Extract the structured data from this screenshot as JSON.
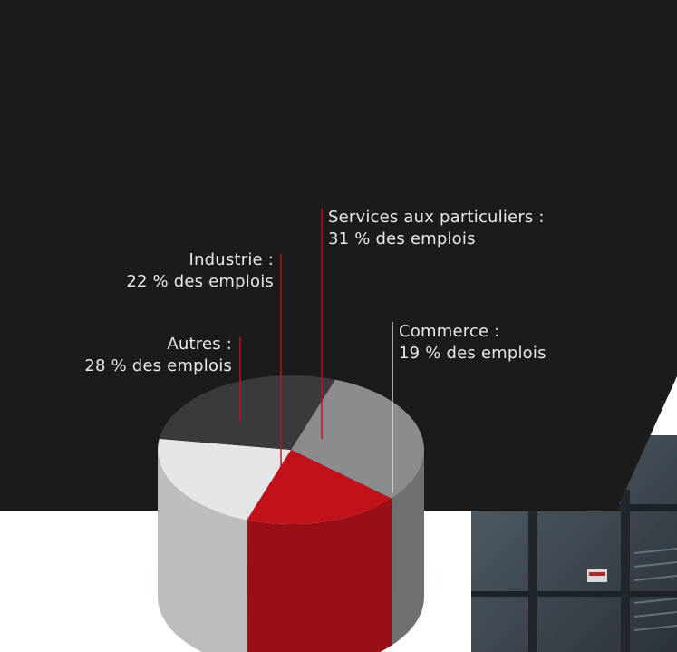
{
  "chart_data": {
    "type": "pie",
    "title": "",
    "slices": [
      {
        "label": "Services aux particuliers :",
        "value": 31,
        "value_text": "31 % des emplois",
        "color": "#8c8c8e"
      },
      {
        "label": "Commerce :",
        "value": 19,
        "value_text": "19 % des emplois",
        "color": "#c1121c"
      },
      {
        "label": "Industrie :",
        "value": 22,
        "value_text": "22 % des emplois",
        "color": "#e6e6e8"
      },
      {
        "label": "Autres :",
        "value": 28,
        "value_text": "28 % des emplois",
        "color": "#3a3a3c"
      }
    ],
    "legend": "none",
    "grid": false
  },
  "colors": {
    "panel": "#1b1b1b",
    "text": "#e9e9e9",
    "accent": "#c1121c"
  }
}
